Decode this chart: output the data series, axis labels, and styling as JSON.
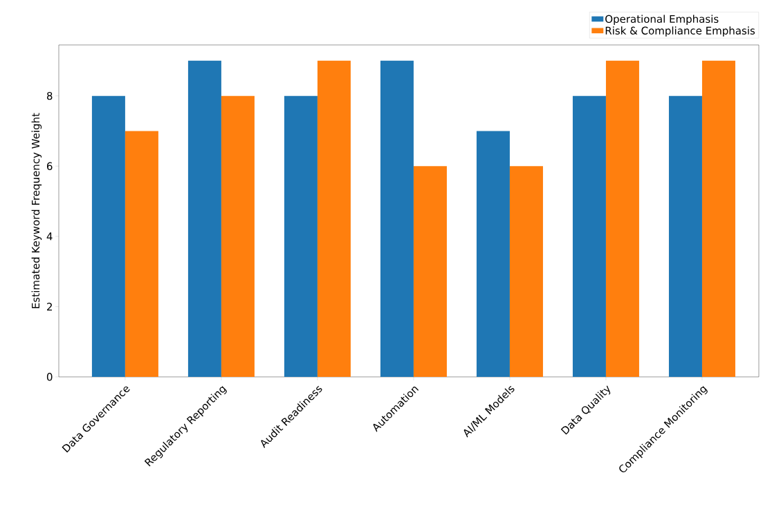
{
  "chart_data": {
    "type": "bar",
    "ylabel": "Estimated Keyword Frequency Weight",
    "categories": [
      "Data Governance",
      "Regulatory Reporting",
      "Audit Readiness",
      "Automation",
      "AI/ML Models",
      "Data Quality",
      "Compliance Monitoring"
    ],
    "series": [
      {
        "name": "Operational Emphasis",
        "color": "#1f77b4",
        "values": [
          8,
          9,
          8,
          9,
          7,
          8,
          8
        ]
      },
      {
        "name": "Risk & Compliance Emphasis",
        "color": "#ff7f0e",
        "values": [
          7,
          8,
          9,
          6,
          6,
          9,
          9
        ]
      }
    ],
    "ylim": [
      0,
      9.45
    ],
    "yticks": [
      0,
      2,
      4,
      6,
      8
    ],
    "legend": "top right",
    "grid": false
  }
}
